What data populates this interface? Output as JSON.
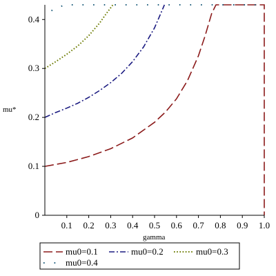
{
  "chart_data": {
    "type": "line",
    "title": "",
    "xlabel": "gamma",
    "ylabel": "mu*",
    "xlim": [
      0,
      1.0
    ],
    "ylim": [
      0,
      0.43
    ],
    "grid": false,
    "legend_position": "bottom",
    "x_ticks": [
      {
        "value": 0.1,
        "label": "0.1"
      },
      {
        "value": 0.2,
        "label": "0.2"
      },
      {
        "value": 0.3,
        "label": "0.3"
      },
      {
        "value": 0.4,
        "label": "0.4"
      },
      {
        "value": 0.5,
        "label": "0.5"
      },
      {
        "value": 0.6,
        "label": "0.6"
      },
      {
        "value": 0.7,
        "label": "0.7"
      },
      {
        "value": 0.8,
        "label": "0.8"
      },
      {
        "value": 0.9,
        "label": "0.9"
      },
      {
        "value": 1.0,
        "label": "1.0"
      }
    ],
    "y_ticks": [
      {
        "value": 0,
        "label": "0"
      },
      {
        "value": 0.1,
        "label": "0.1"
      },
      {
        "value": 0.2,
        "label": "0.2"
      },
      {
        "value": 0.3,
        "label": "0.3"
      },
      {
        "value": 0.4,
        "label": "0.4"
      }
    ],
    "series": [
      {
        "name": "mu0=0.1",
        "color": "#8b1a1a",
        "style": "longdash",
        "x": [
          0,
          0.1,
          0.2,
          0.3,
          0.4,
          0.5,
          0.55,
          0.6,
          0.65,
          0.7,
          0.73,
          0.76,
          0.78,
          1.0,
          1.0
        ],
        "y": [
          0.1,
          0.108,
          0.12,
          0.136,
          0.158,
          0.19,
          0.211,
          0.238,
          0.275,
          0.326,
          0.366,
          0.412,
          0.43,
          0.43,
          0
        ]
      },
      {
        "name": "mu0=0.2",
        "color": "#1a1a80",
        "style": "dashdot",
        "x": [
          0,
          0.05,
          0.1,
          0.15,
          0.2,
          0.25,
          0.3,
          0.35,
          0.4,
          0.45,
          0.5,
          0.53,
          0.545
        ],
        "y": [
          0.2,
          0.21,
          0.219,
          0.229,
          0.241,
          0.255,
          0.271,
          0.29,
          0.314,
          0.344,
          0.383,
          0.414,
          0.43
        ]
      },
      {
        "name": "mu0=0.3",
        "color": "#6b7a00",
        "style": "dotted",
        "x": [
          0,
          0.05,
          0.1,
          0.15,
          0.2,
          0.25,
          0.28,
          0.31
        ],
        "y": [
          0.3,
          0.314,
          0.329,
          0.346,
          0.367,
          0.393,
          0.412,
          0.43
        ]
      },
      {
        "name": "mu0=0.4",
        "color": "#1a5a7a",
        "style": "sparse-dot",
        "x": [
          0.03,
          0.09,
          0.2,
          0.3,
          0.4,
          0.5,
          0.6,
          0.7,
          0.8,
          0.9,
          1.0
        ],
        "y": [
          0.418,
          0.43,
          0.43,
          0.43,
          0.43,
          0.43,
          0.43,
          0.43,
          0.43,
          0.43,
          0.43
        ]
      }
    ]
  }
}
